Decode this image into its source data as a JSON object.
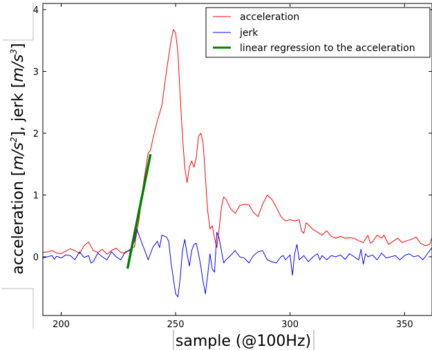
{
  "chart_data": {
    "type": "line",
    "xlabel": "sample (@100Hz)",
    "ylabel": "acceleration [m/s², jerk [m/s³]",
    "ylabel_parts": {
      "pre": "acceleration [",
      "u1_base": "m/s",
      "u1_exp": "2",
      "mid": "], jerk [",
      "u2_base": "m/s",
      "u2_exp": "3",
      "post": "]"
    },
    "xlim": [
      192,
      362
    ],
    "ylim": [
      -0.95,
      4.1
    ],
    "x_ticks": [
      200,
      250,
      300,
      350
    ],
    "y_ticks": [
      0,
      1,
      2,
      3,
      4
    ],
    "grid": false,
    "legend_position": "top-right",
    "series": [
      {
        "name": "acceleration",
        "color": "#ff0000",
        "points": [
          [
            192,
            0.07
          ],
          [
            194,
            0.08
          ],
          [
            196,
            0.1
          ],
          [
            198,
            0.06
          ],
          [
            200,
            0.05
          ],
          [
            202,
            0.09
          ],
          [
            204,
            0.13
          ],
          [
            206,
            0.1
          ],
          [
            208,
            0.05
          ],
          [
            210,
            0.18
          ],
          [
            212,
            0.24
          ],
          [
            214,
            0.1
          ],
          [
            216,
            0.07
          ],
          [
            218,
            0.12
          ],
          [
            220,
            0.04
          ],
          [
            222,
            0.1
          ],
          [
            224,
            0.14
          ],
          [
            226,
            0.07
          ],
          [
            228,
            0.06
          ],
          [
            230,
            0.12
          ],
          [
            232,
            0.16
          ],
          [
            234,
            0.6
          ],
          [
            236,
            1.2
          ],
          [
            238,
            1.68
          ],
          [
            239,
            1.72
          ],
          [
            240,
            1.9
          ],
          [
            242,
            2.2
          ],
          [
            244,
            2.45
          ],
          [
            246,
            3.0
          ],
          [
            248,
            3.5
          ],
          [
            249,
            3.68
          ],
          [
            250,
            3.62
          ],
          [
            251,
            3.3
          ],
          [
            252,
            2.6
          ],
          [
            253,
            1.95
          ],
          [
            254,
            1.45
          ],
          [
            255,
            1.2
          ],
          [
            256,
            1.45
          ],
          [
            257,
            1.55
          ],
          [
            258,
            1.45
          ],
          [
            259,
            1.6
          ],
          [
            260,
            1.95
          ],
          [
            261,
            2.0
          ],
          [
            262,
            1.85
          ],
          [
            263,
            1.3
          ],
          [
            264,
            0.75
          ],
          [
            265,
            0.45
          ],
          [
            266,
            0.5
          ],
          [
            267,
            0.3
          ],
          [
            268,
            0.15
          ],
          [
            269,
            0.45
          ],
          [
            270,
            0.8
          ],
          [
            271,
            0.97
          ],
          [
            272,
            0.93
          ],
          [
            274,
            0.78
          ],
          [
            276,
            0.7
          ],
          [
            278,
            0.83
          ],
          [
            280,
            0.85
          ],
          [
            282,
            0.84
          ],
          [
            284,
            0.72
          ],
          [
            286,
            0.65
          ],
          [
            288,
            0.85
          ],
          [
            290,
            1.0
          ],
          [
            292,
            0.93
          ],
          [
            294,
            0.8
          ],
          [
            296,
            0.65
          ],
          [
            298,
            0.58
          ],
          [
            300,
            0.6
          ],
          [
            302,
            0.58
          ],
          [
            304,
            0.6
          ],
          [
            305,
            0.42
          ],
          [
            306,
            0.38
          ],
          [
            307,
            0.55
          ],
          [
            308,
            0.52
          ],
          [
            310,
            0.44
          ],
          [
            312,
            0.4
          ],
          [
            314,
            0.35
          ],
          [
            316,
            0.42
          ],
          [
            318,
            0.33
          ],
          [
            320,
            0.3
          ],
          [
            322,
            0.33
          ],
          [
            324,
            0.3
          ],
          [
            326,
            0.31
          ],
          [
            328,
            0.3
          ],
          [
            330,
            0.26
          ],
          [
            332,
            0.23
          ],
          [
            334,
            0.35
          ],
          [
            335,
            0.22
          ],
          [
            336,
            0.24
          ],
          [
            338,
            0.35
          ],
          [
            340,
            0.3
          ],
          [
            341,
            0.35
          ],
          [
            343,
            0.2
          ],
          [
            345,
            0.25
          ],
          [
            347,
            0.3
          ],
          [
            349,
            0.23
          ],
          [
            351,
            0.26
          ],
          [
            353,
            0.28
          ],
          [
            355,
            0.32
          ],
          [
            357,
            0.22
          ],
          [
            359,
            0.18
          ],
          [
            361,
            0.2
          ],
          [
            362,
            0.31
          ]
        ]
      },
      {
        "name": "jerk",
        "color": "#0000ff",
        "points": [
          [
            192,
            -0.02
          ],
          [
            194,
            0.0
          ],
          [
            196,
            0.02
          ],
          [
            197,
            -0.04
          ],
          [
            198,
            0.01
          ],
          [
            200,
            -0.02
          ],
          [
            202,
            0.03
          ],
          [
            204,
            0.02
          ],
          [
            206,
            -0.05
          ],
          [
            208,
            0.08
          ],
          [
            210,
            -0.01
          ],
          [
            212,
            0.02
          ],
          [
            213,
            -0.1
          ],
          [
            214,
            -0.08
          ],
          [
            216,
            0.06
          ],
          [
            218,
            0.0
          ],
          [
            220,
            -0.05
          ],
          [
            222,
            0.08
          ],
          [
            224,
            0.0
          ],
          [
            226,
            -0.05
          ],
          [
            228,
            0.08
          ],
          [
            230,
            0.1
          ],
          [
            232,
            0.25
          ],
          [
            233,
            0.45
          ],
          [
            234,
            0.35
          ],
          [
            236,
            0.15
          ],
          [
            238,
            -0.05
          ],
          [
            240,
            0.15
          ],
          [
            242,
            0.25
          ],
          [
            243,
            0.15
          ],
          [
            244,
            0.35
          ],
          [
            246,
            0.32
          ],
          [
            247,
            0.25
          ],
          [
            248,
            -0.1
          ],
          [
            249,
            -0.35
          ],
          [
            250,
            -0.6
          ],
          [
            251,
            -0.65
          ],
          [
            252,
            -0.35
          ],
          [
            253,
            0.1
          ],
          [
            254,
            0.28
          ],
          [
            255,
            0.05
          ],
          [
            256,
            -0.15
          ],
          [
            257,
            0.1
          ],
          [
            258,
            0.2
          ],
          [
            259,
            0.22
          ],
          [
            260,
            0.05
          ],
          [
            261,
            -0.15
          ],
          [
            262,
            -0.4
          ],
          [
            263,
            -0.6
          ],
          [
            264,
            -0.3
          ],
          [
            265,
            0.05
          ],
          [
            266,
            -0.2
          ],
          [
            267,
            -0.25
          ],
          [
            268,
            0.4
          ],
          [
            269,
            0.3
          ],
          [
            270,
            0.1
          ],
          [
            271,
            -0.1
          ],
          [
            272,
            -0.05
          ],
          [
            274,
            0.02
          ],
          [
            276,
            0.1
          ],
          [
            278,
            0.0
          ],
          [
            280,
            -0.02
          ],
          [
            282,
            -0.1
          ],
          [
            284,
            0.02
          ],
          [
            286,
            0.08
          ],
          [
            288,
            0.1
          ],
          [
            290,
            -0.05
          ],
          [
            292,
            -0.08
          ],
          [
            294,
            -0.1
          ],
          [
            296,
            0.0
          ],
          [
            297,
            0.02
          ],
          [
            298,
            -0.05
          ],
          [
            300,
            0.03
          ],
          [
            301,
            -0.3
          ],
          [
            302,
            0.05
          ],
          [
            303,
            0.2
          ],
          [
            304,
            -0.05
          ],
          [
            306,
            0.02
          ],
          [
            308,
            -0.08
          ],
          [
            310,
            0.0
          ],
          [
            312,
            0.05
          ],
          [
            313,
            -0.05
          ],
          [
            314,
            0.02
          ],
          [
            316,
            -0.05
          ],
          [
            318,
            0.02
          ],
          [
            320,
            0.0
          ],
          [
            322,
            0.03
          ],
          [
            324,
            -0.04
          ],
          [
            326,
            0.05
          ],
          [
            328,
            0.0
          ],
          [
            330,
            -0.05
          ],
          [
            331,
            0.12
          ],
          [
            332,
            -0.12
          ],
          [
            333,
            0.05
          ],
          [
            334,
            0.0
          ],
          [
            336,
            0.03
          ],
          [
            338,
            -0.05
          ],
          [
            340,
            0.06
          ],
          [
            342,
            -0.02
          ],
          [
            344,
            0.0
          ],
          [
            346,
            0.02
          ],
          [
            348,
            -0.05
          ],
          [
            350,
            0.02
          ],
          [
            352,
            0.05
          ],
          [
            354,
            0.0
          ],
          [
            356,
            0.02
          ],
          [
            358,
            -0.05
          ],
          [
            360,
            0.05
          ],
          [
            362,
            0.15
          ]
        ]
      },
      {
        "name": "linear regression to the acceleration",
        "color": "#008000",
        "points": [
          [
            229,
            -0.19
          ],
          [
            239,
            1.66
          ]
        ]
      }
    ]
  }
}
